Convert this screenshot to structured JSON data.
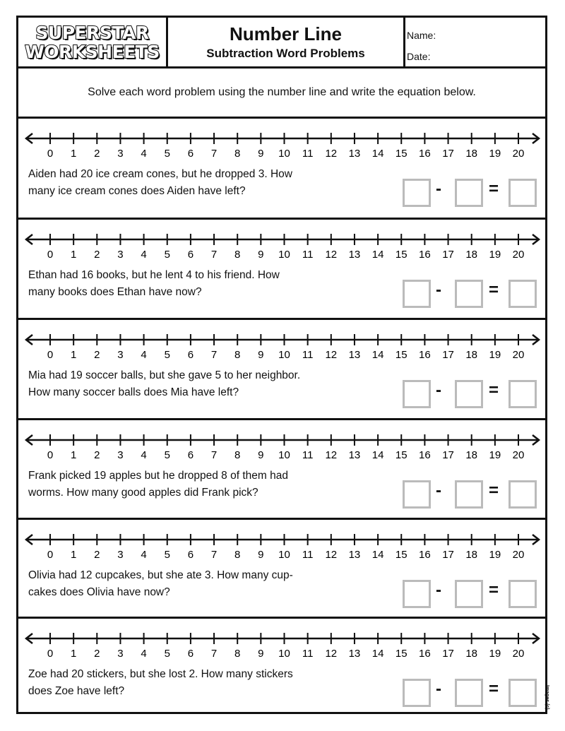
{
  "header": {
    "logo_line1": "SUPERSTAR",
    "logo_line2": "WORKSHEETS",
    "title": "Number Line",
    "subtitle": "Subtraction Word Problems",
    "name_label": "Name:",
    "date_label": "Date:"
  },
  "instructions": "Solve each word problem using the number line and write the equation below.",
  "number_line": {
    "labels": [
      "0",
      "1",
      "2",
      "3",
      "4",
      "5",
      "6",
      "7",
      "8",
      "9",
      "10",
      "11",
      "12",
      "13",
      "14",
      "15",
      "16",
      "17",
      "18",
      "19",
      "20"
    ]
  },
  "equation": {
    "minus": "-",
    "equals": "="
  },
  "problems": [
    {
      "line1": "Aiden had 20 ice cream cones, but he dropped 3. How",
      "line2": "many ice cream cones does Aiden have left?"
    },
    {
      "line1": "Ethan had 16 books, but he lent 4 to his friend. How",
      "line2": "many books does Ethan have now?"
    },
    {
      "line1": "Mia had 19 soccer balls, but she gave 5 to her neighbor.",
      "line2": "How many soccer balls does Mia have left?"
    },
    {
      "line1": "Frank picked 19 apples but he dropped 8 of them had",
      "line2": "worms. How many good apples did Frank pick?"
    },
    {
      "line1": "Olivia had 12 cupcakes, but she ate 3. How many cup-",
      "line2": "cakes does Olivia have now?"
    },
    {
      "line1": "Zoe had 20 stickers, but she lost 2. How many stickers",
      "line2": "does Zoe have left?"
    }
  ],
  "credit": "Images (c)"
}
